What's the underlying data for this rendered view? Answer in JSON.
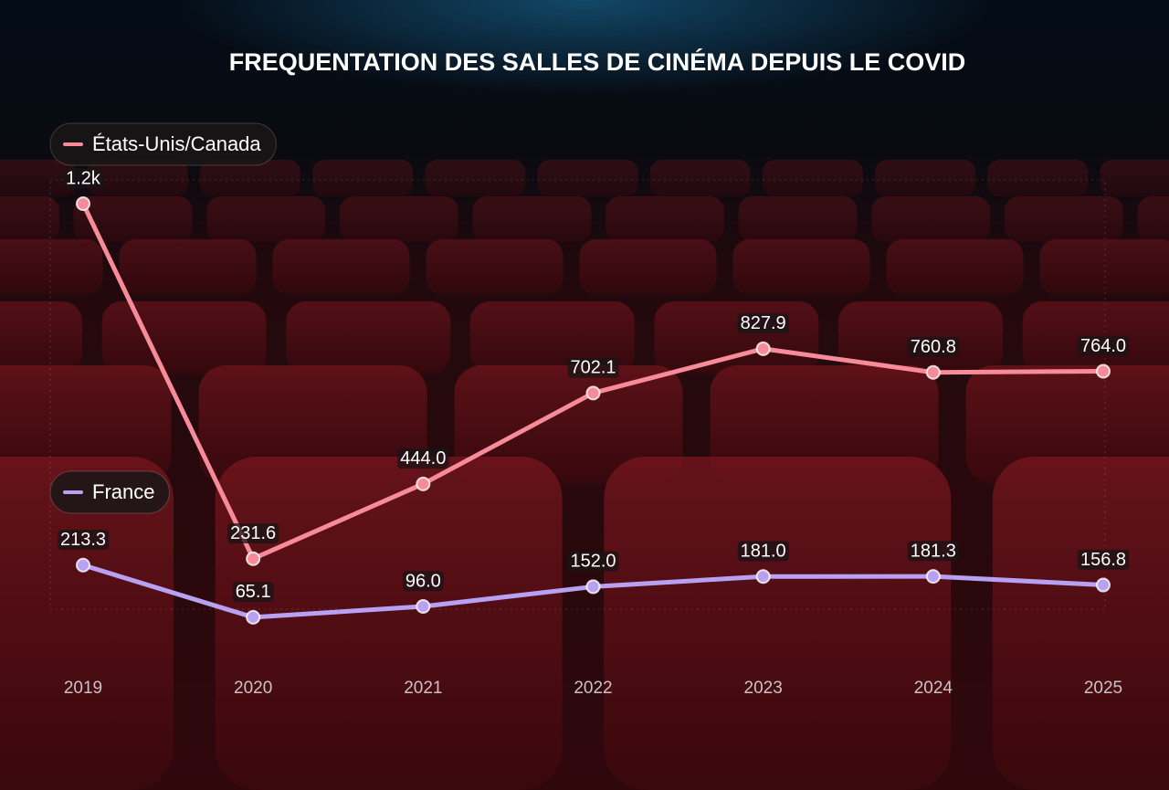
{
  "chart_data": {
    "type": "line",
    "title": "FREQUENTATION DES SALLES DE CINÉMA DEPUIS LE COVID",
    "categories": [
      "2019",
      "2020",
      "2021",
      "2022",
      "2023",
      "2024",
      "2025"
    ],
    "ylim": [
      0,
      1240
    ],
    "series": [
      {
        "name": "États-Unis/Canada",
        "color": "#f78b99",
        "values": [
          1240,
          231.6,
          444.0,
          702.1,
          827.9,
          760.8,
          764.0
        ],
        "value_labels": [
          "1.2k",
          "231.6",
          "444.0",
          "702.1",
          "827.9",
          "760.8",
          "764.0"
        ]
      },
      {
        "name": "France",
        "color": "#b8a0f2",
        "values": [
          213.3,
          65.1,
          96.0,
          152.0,
          181.0,
          181.3,
          156.8
        ],
        "value_labels": [
          "213.3",
          "65.1",
          "96.0",
          "152.0",
          "181.0",
          "181.3",
          "156.8"
        ]
      }
    ]
  }
}
